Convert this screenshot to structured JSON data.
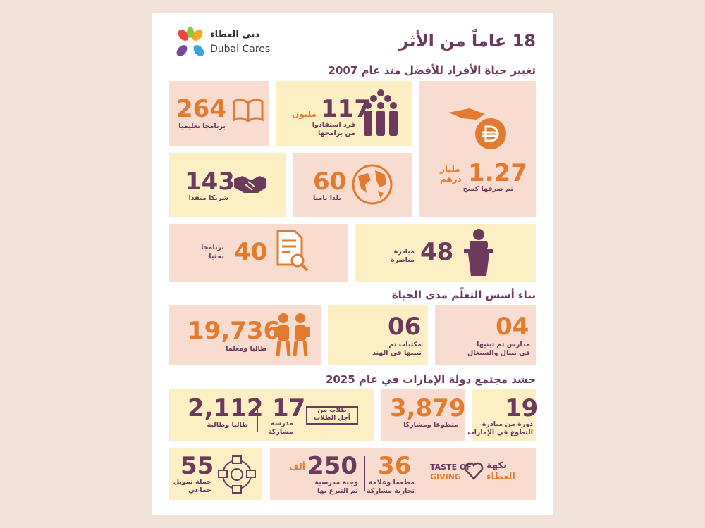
{
  "header": {
    "title": "18 عاماً من الأثر",
    "logo": {
      "arabic": "دبي العطاء",
      "english": "Dubai Cares"
    }
  },
  "sections": [
    {
      "heading": "تغيير حياة الأفراد للأفضل منذ عام 2007",
      "tiles": [
        {
          "value": "264",
          "lines": [
            "برنامجا تعليميا"
          ]
        },
        {
          "value": "117",
          "unit": "مليون",
          "lines": [
            "فرد استفادوا",
            "من برامجها"
          ]
        },
        {
          "value": "1.27",
          "unit": [
            "مليار",
            "درهم"
          ],
          "lines": [
            "تم صرفها كمنح"
          ]
        },
        {
          "value": "143",
          "lines": [
            "شريكا منفذا"
          ]
        },
        {
          "value": "60",
          "lines": [
            "بلدا ناميا"
          ]
        },
        {
          "value": "40",
          "lines": [
            "برنامجا",
            "بحثيا"
          ]
        },
        {
          "value": "48",
          "lines": [
            "مبادرة",
            "مناصرة"
          ]
        }
      ]
    },
    {
      "heading": "بناء أسس التعلّم مدى الحياة",
      "tiles": [
        {
          "value": "19,736",
          "lines": [
            "طالبا ومعلما"
          ]
        },
        {
          "value": "06",
          "lines": [
            "مكتبات تم",
            "تبنيها في الهند"
          ]
        },
        {
          "value": "04",
          "lines": [
            "مدارس تم تبنيها",
            "في نيبال والسنغال"
          ]
        }
      ]
    },
    {
      "heading": "حشد مجتمع دولة الإمارات في عام 2025",
      "tiles": [
        {
          "value": "2,112",
          "lines": [
            "طالبا وطالبة"
          ]
        },
        {
          "value": "17",
          "lines": [
            "مدرسة",
            "مشاركة"
          ],
          "logo": [
            "طلاب من",
            "أجل الطلاب"
          ]
        },
        {
          "value": "3,879",
          "lines": [
            "متطوعا ومشاركا"
          ]
        },
        {
          "value": "19",
          "lines": [
            "دورة من مبادرة",
            "التطوع في الإمارات"
          ]
        },
        {
          "value": "55",
          "lines": [
            "حملة تمويل",
            "جماعي"
          ]
        },
        {
          "value": "250",
          "unit": "ألف",
          "lines": [
            "وجبة مدرسية",
            "تم التبرع بها"
          ]
        },
        {
          "value": "36",
          "lines": [
            "مطعما وعلامة",
            "تجارية مشاركة"
          ],
          "logo": {
            "english": [
              "TASTE OF",
              "GIVING"
            ],
            "arabic": [
              "نكهة",
              "العطاء"
            ]
          }
        }
      ]
    }
  ]
}
